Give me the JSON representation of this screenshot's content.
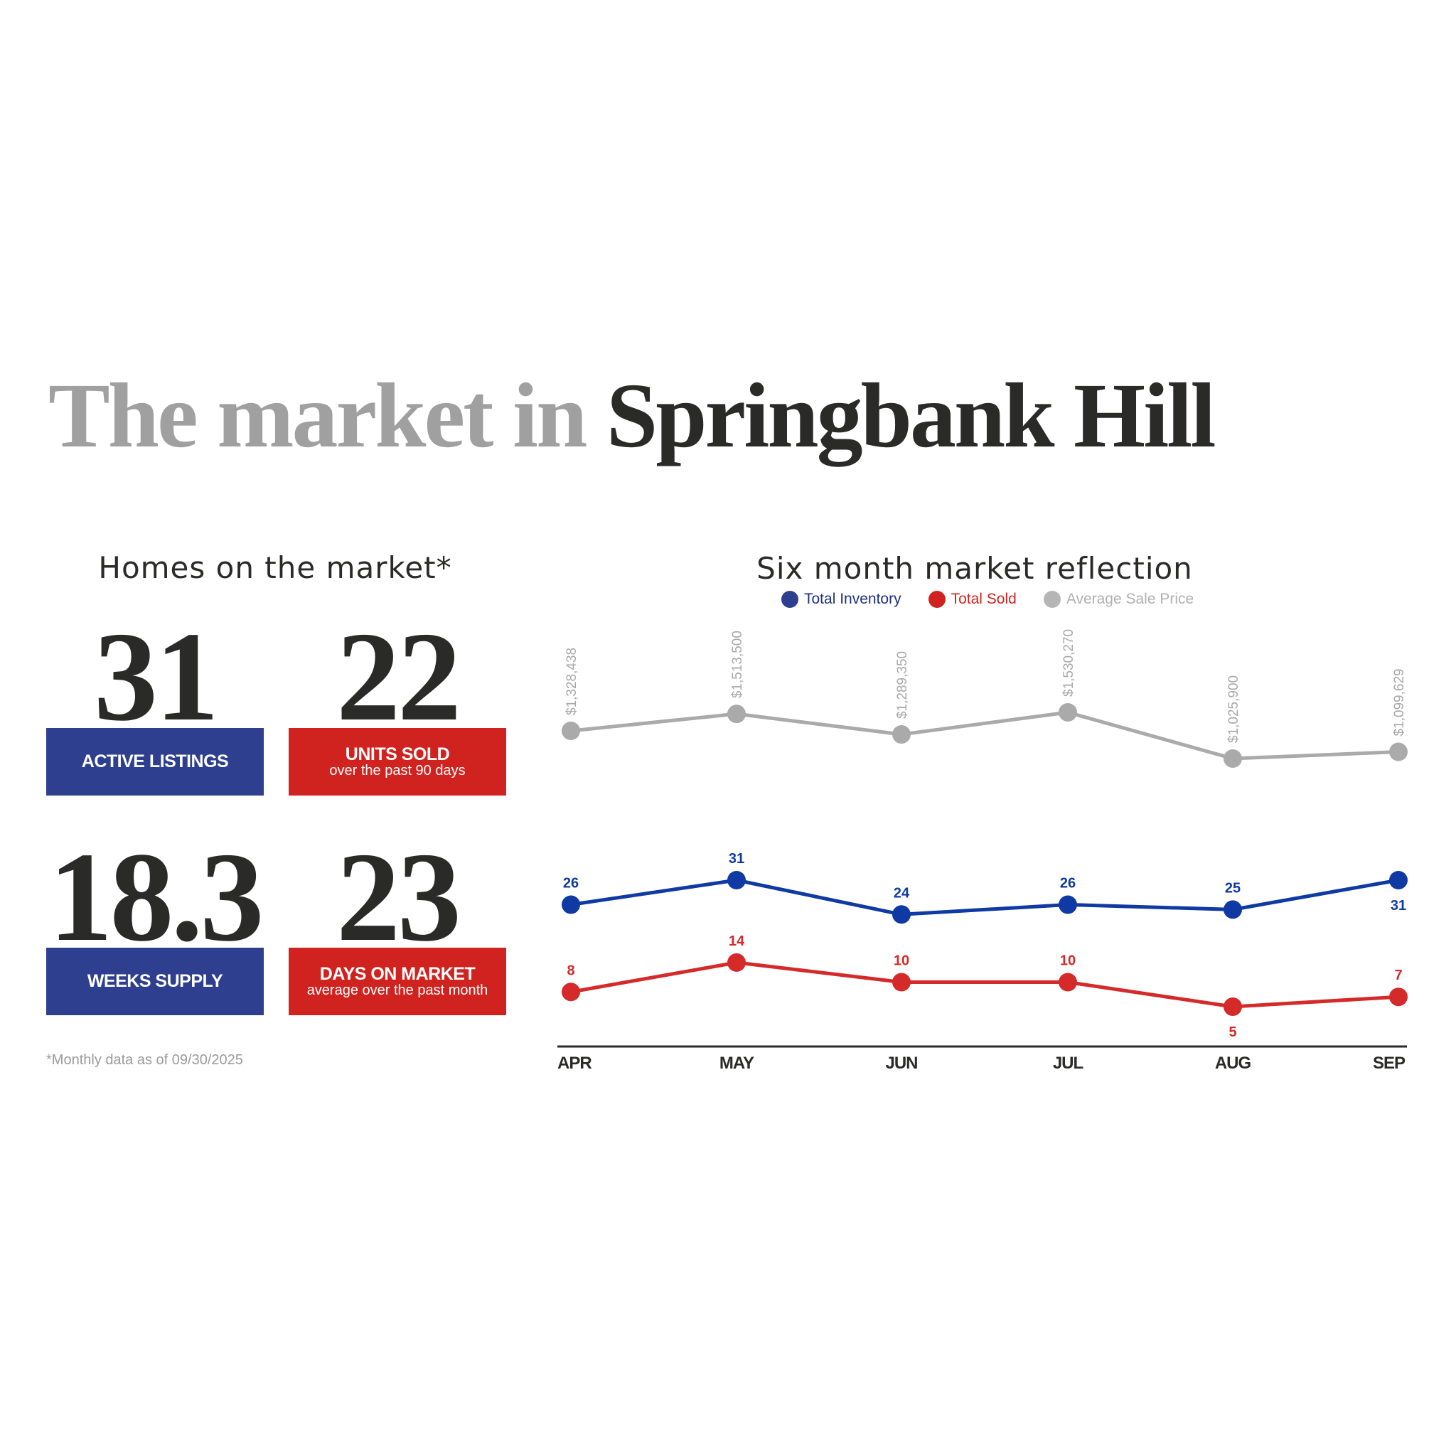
{
  "header": {
    "title_light": "The market in",
    "title_dark": "Springbank Hill"
  },
  "homes": {
    "title": "Homes on the market*",
    "stats": [
      {
        "value": "31",
        "label": "ACTIVE LISTINGS",
        "sublabel": "",
        "color": "#2e3f8f"
      },
      {
        "value": "22",
        "label": "UNITS SOLD",
        "sublabel": "over the past 90 days",
        "color": "#d0231f"
      },
      {
        "value": "18.3",
        "label": "WEEKS SUPPLY",
        "sublabel": "",
        "color": "#2e3f8f"
      },
      {
        "value": "23",
        "label": "DAYS ON MARKET",
        "sublabel": "average over the past month",
        "color": "#d0231f"
      }
    ],
    "footnote": "*Monthly data as of 09/30/2025"
  },
  "chart_data": {
    "type": "line",
    "title": "Six month market reflection",
    "categories": [
      "APR",
      "MAY",
      "JUN",
      "JUL",
      "AUG",
      "SEP"
    ],
    "legend_placement": "top",
    "grid": false,
    "series": [
      {
        "name": "Total Inventory",
        "color": "#0f3aa3",
        "values": [
          26,
          31,
          24,
          26,
          25,
          31
        ],
        "labels": [
          "26",
          "31",
          "24",
          "26",
          "25",
          "31"
        ]
      },
      {
        "name": "Total Sold",
        "color": "#d42a2a",
        "values": [
          8,
          14,
          10,
          10,
          5,
          7
        ],
        "labels": [
          "8",
          "14",
          "10",
          "10",
          "5",
          "7"
        ]
      },
      {
        "name": "Average Sale Price",
        "color": "#aaaaaa",
        "values": [
          1328438,
          1513500,
          1289350,
          1530270,
          1025900,
          1099629
        ],
        "labels": [
          "$1,328,438",
          "$1,513,500",
          "$1,289,350",
          "$1,530,270",
          "$1,025,900",
          "$1,099,629"
        ]
      }
    ]
  }
}
